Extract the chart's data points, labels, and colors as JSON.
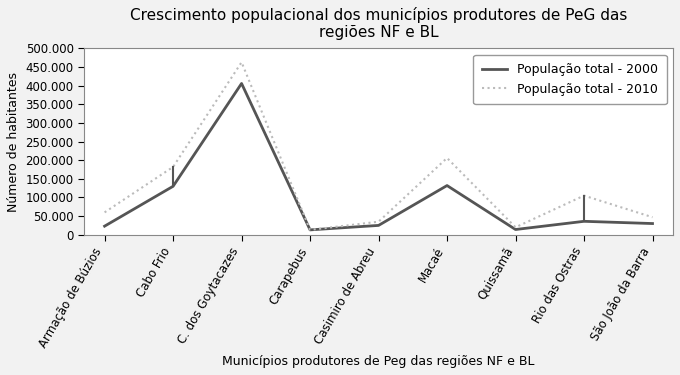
{
  "categories": [
    "Armação de Búzios",
    "Cabo Frio",
    "C. dos Goytacazes",
    "Carapebus",
    "Casimiro de Abreu",
    "Macaé",
    "Quissamã",
    "Rio das Ostras",
    "São João da Barra"
  ],
  "values_2000": [
    23000,
    130000,
    406000,
    13000,
    25000,
    132000,
    14000,
    36000,
    30000
  ],
  "values_2010": [
    60000,
    182000,
    463000,
    13000,
    35000,
    206000,
    20000,
    105000,
    47000
  ],
  "xlabel": "Municípios produtores de Peg das regiões NF e BL",
  "ylabel": "Número de habitantes",
  "title": "Crescimento populacional dos municípios produtores de PeG das\nregiões NF e BL",
  "legend_2000": "População total - 2000",
  "legend_2010": "População total - 2010",
  "ylim": [
    0,
    500000
  ],
  "yticks": [
    0,
    50000,
    100000,
    150000,
    200000,
    250000,
    300000,
    350000,
    400000,
    450000,
    500000
  ],
  "color_2000": "#555555",
  "color_2010": "#bbbbbb",
  "background_color": "#f2f2f2",
  "plot_background": "#ffffff",
  "title_fontsize": 11,
  "axis_fontsize": 9,
  "tick_fontsize": 8.5,
  "legend_fontsize": 9,
  "vertical_lines": [
    1,
    7
  ]
}
